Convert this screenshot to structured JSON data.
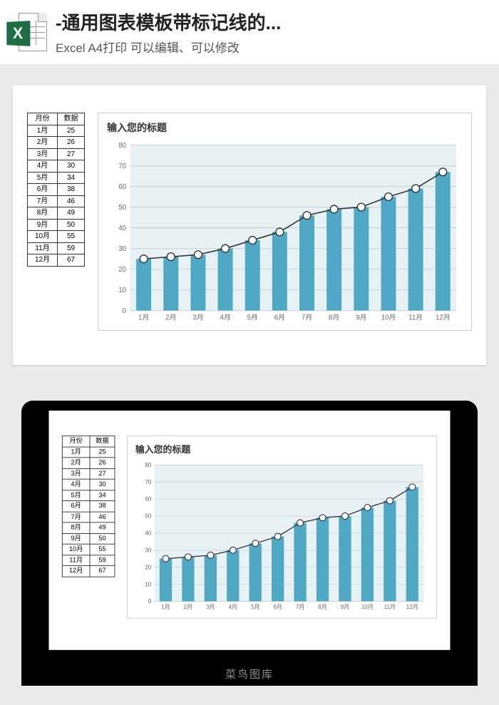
{
  "header": {
    "title": "-通用图表模板带标记线的...",
    "subtitle": "Excel A4打印 可以编辑、可以修改"
  },
  "table": {
    "col_month": "月份",
    "col_value": "数据",
    "rows": [
      {
        "month": "1月",
        "value": 25
      },
      {
        "month": "2月",
        "value": 26
      },
      {
        "month": "3月",
        "value": 27
      },
      {
        "month": "4月",
        "value": 30
      },
      {
        "month": "5月",
        "value": 34
      },
      {
        "month": "6月",
        "value": 38
      },
      {
        "month": "7月",
        "value": 46
      },
      {
        "month": "8月",
        "value": 49
      },
      {
        "month": "9月",
        "value": 50
      },
      {
        "month": "10月",
        "value": 55
      },
      {
        "month": "11月",
        "value": 59
      },
      {
        "month": "12月",
        "value": 67
      }
    ]
  },
  "chart": {
    "title": "输入您的标题",
    "type": "bar+line",
    "categories": [
      "1月",
      "2月",
      "3月",
      "4月",
      "5月",
      "6月",
      "7月",
      "8月",
      "9月",
      "10月",
      "11月",
      "12月"
    ],
    "values": [
      25,
      26,
      27,
      30,
      34,
      38,
      46,
      49,
      50,
      55,
      59,
      67
    ],
    "ylim": [
      0,
      80
    ],
    "ytick_step": 10,
    "bar_color": "#4fa9c4",
    "bar_width_ratio": 0.55,
    "plot_background": "#e8f2f4",
    "grid_color": "#c7d4d7",
    "axis_text_color": "#6b6b6b",
    "axis_fontsize": 9,
    "line_color": "#2b2b2b",
    "line_width": 1.4,
    "marker_radius": 5,
    "marker_fill": "#ffffff",
    "marker_stroke": "#2b2b2b",
    "marker_stroke_width": 1.2,
    "title_fontsize": 14,
    "title_color": "#333333"
  },
  "watermark": "菜鸟图库"
}
